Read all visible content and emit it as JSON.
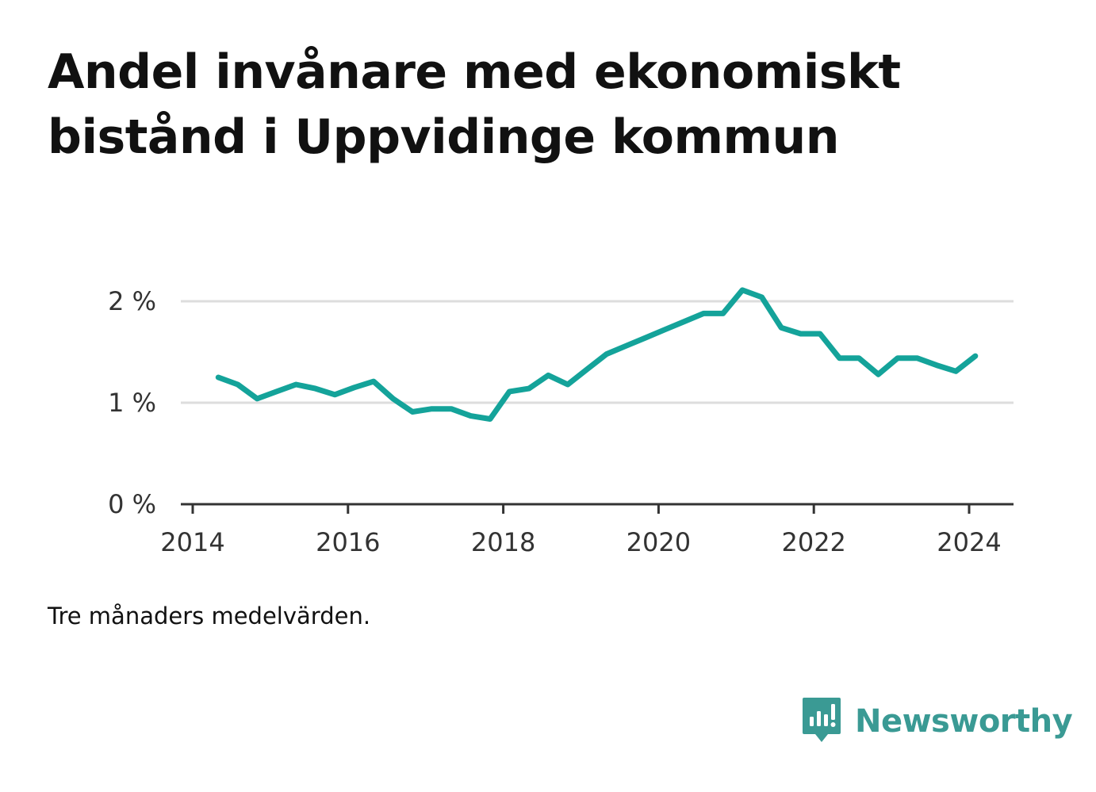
{
  "title": "Andel invånare med ekonomiskt bistånd i Uppvidinge kommun",
  "note": "Tre månaders medelvärden.",
  "brand": {
    "name": "Newsworthy",
    "icon": "newsworthy-logo-icon",
    "color": "#3a9a94"
  },
  "colors": {
    "line": "#14a39a",
    "grid": "#dddddd",
    "axis": "#333333"
  },
  "chart_data": {
    "type": "line",
    "title": "Andel invånare med ekonomiskt bistånd i Uppvidinge kommun",
    "xlabel": "",
    "ylabel": "",
    "x_ticks": [
      2014,
      2016,
      2018,
      2020,
      2022,
      2024
    ],
    "x_tick_labels": [
      "2014",
      "2016",
      "2018",
      "2020",
      "2022",
      "2024"
    ],
    "y_ticks": [
      0,
      1,
      2
    ],
    "y_tick_labels": [
      "0 %",
      "1 %",
      "2 %"
    ],
    "xlim": [
      2014,
      2024.6
    ],
    "ylim": [
      0,
      2.0
    ],
    "grid": true,
    "legend": "none",
    "series": [
      {
        "values": [
          [
            2014.33,
            1.25
          ],
          [
            2014.58,
            1.18
          ],
          [
            2014.83,
            1.04
          ],
          [
            2015.08,
            1.11
          ],
          [
            2015.33,
            1.18
          ],
          [
            2015.58,
            1.14
          ],
          [
            2015.83,
            1.08
          ],
          [
            2016.08,
            1.15
          ],
          [
            2016.33,
            1.21
          ],
          [
            2016.58,
            1.04
          ],
          [
            2016.83,
            0.91
          ],
          [
            2017.08,
            0.94
          ],
          [
            2017.33,
            0.94
          ],
          [
            2017.58,
            0.87
          ],
          [
            2017.83,
            0.84
          ],
          [
            2018.08,
            1.11
          ],
          [
            2018.33,
            1.14
          ],
          [
            2018.58,
            1.27
          ],
          [
            2018.83,
            1.18
          ],
          [
            2019.08,
            1.33
          ],
          [
            2019.33,
            1.48
          ],
          [
            2019.58,
            1.56
          ],
          [
            2019.83,
            1.64
          ],
          [
            2020.08,
            1.72
          ],
          [
            2020.33,
            1.8
          ],
          [
            2020.58,
            1.88
          ],
          [
            2020.83,
            1.88
          ],
          [
            2021.08,
            2.11
          ],
          [
            2021.33,
            2.04
          ],
          [
            2021.58,
            1.74
          ],
          [
            2021.83,
            1.68
          ],
          [
            2022.08,
            1.68
          ],
          [
            2022.33,
            1.44
          ],
          [
            2022.58,
            1.44
          ],
          [
            2022.83,
            1.28
          ],
          [
            2023.08,
            1.44
          ],
          [
            2023.33,
            1.44
          ],
          [
            2023.58,
            1.37
          ],
          [
            2023.83,
            1.31
          ],
          [
            2024.08,
            1.46
          ]
        ]
      }
    ]
  }
}
